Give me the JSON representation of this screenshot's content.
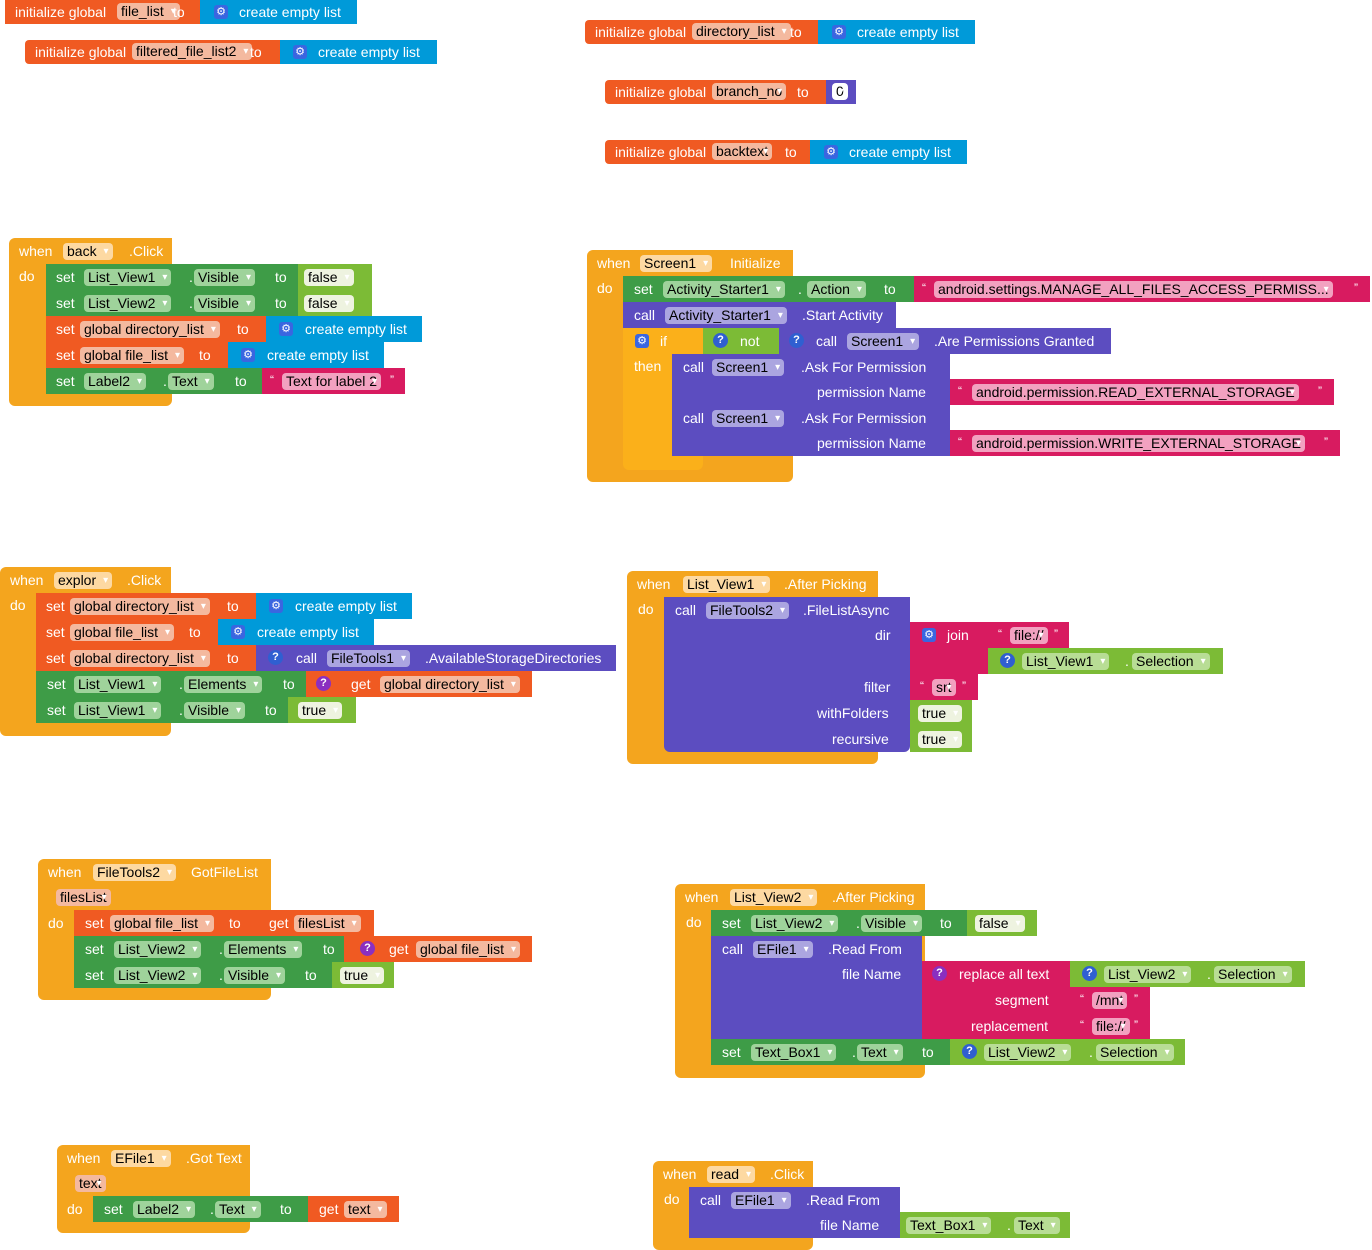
{
  "kw": {
    "initialize_global": "initialize global",
    "to": "to",
    "create_empty_list": "create empty list",
    "when": "when",
    "do": "do",
    "set": "set",
    "call": "call",
    "get": "get",
    "if": "if",
    "then": "then",
    "not": "not",
    "join": "join",
    "dot": ".",
    "quote_open": "“",
    "quote_close": "”"
  },
  "globals": {
    "file_list": "file_list",
    "filtered_file_list2": "filtered_file_list2",
    "directory_list": "directory_list",
    "branch_no": "branch_no",
    "branch_no_value": "0",
    "backtext": "backtext"
  },
  "back_click": {
    "component": "back",
    "event": ".Click",
    "lv1": "List_View1",
    "lv2": "List_View2",
    "visible": "Visible",
    "false": "false",
    "gdir": "global directory_list",
    "gfile": "global file_list",
    "label2": "Label2",
    "text": "Text",
    "text_value": "Text for label 2"
  },
  "screen1_init": {
    "component": "Screen1",
    "event": "Initialize",
    "activity": "Activity_Starter1",
    "action": "Action",
    "action_value": "android.settings.MANAGE_ALL_FILES_ACCESS_PERMISS...",
    "start_activity": ".Start Activity",
    "screen1": "Screen1",
    "are_granted": ".Are Permissions Granted",
    "ask": ".Ask For Permission",
    "perm_name": "permission Name",
    "read_perm": "android.permission.READ_EXTERNAL_STORAGE",
    "write_perm": "android.permission.WRITE_EXTERNAL_STORAGE"
  },
  "explor_click": {
    "component": "explor",
    "event": ".Click",
    "gdir": "global directory_list",
    "gfile": "global file_list",
    "filetools1": "FileTools1",
    "avail": ".AvailableStorageDirectories",
    "lv1": "List_View1",
    "elements": "Elements",
    "visible": "Visible",
    "true": "true"
  },
  "lv1_after": {
    "component": "List_View1",
    "event": ".After Picking",
    "filetools2": "FileTools2",
    "filelistasync": ".FileListAsync",
    "dir": "dir",
    "file_prefix": "file://",
    "lv1": "List_View1",
    "selection": "Selection",
    "filter": "filter",
    "filter_value": "srt",
    "withfolders": "withFolders",
    "recursive": "recursive",
    "true": "true"
  },
  "gotfilelist": {
    "component": "FileTools2",
    "event": "GotFileList",
    "param": "filesList",
    "gfile": "global file_list",
    "lv2": "List_View2",
    "elements": "Elements",
    "visible": "Visible",
    "true": "true"
  },
  "lv2_after": {
    "component": "List_View2",
    "event": ".After Picking",
    "lv2": "List_View2",
    "visible": "Visible",
    "false": "false",
    "efile": "EFile1",
    "readfrom": ".Read From",
    "filename": "file Name",
    "replace": "replace all text",
    "selection": "Selection",
    "segment": "segment",
    "segment_value": "/mnt",
    "replacement": "replacement",
    "replacement_value": "file://",
    "textbox": "Text_Box1",
    "text": "Text"
  },
  "efile_gottext": {
    "component": "EFile1",
    "event": ".Got Text",
    "param": "text",
    "label2": "Label2",
    "text": "Text"
  },
  "read_click": {
    "component": "read",
    "event": ".Click",
    "efile": "EFile1",
    "readfrom": ".Read From",
    "filename": "file Name",
    "textbox": "Text_Box1",
    "text": "Text"
  }
}
